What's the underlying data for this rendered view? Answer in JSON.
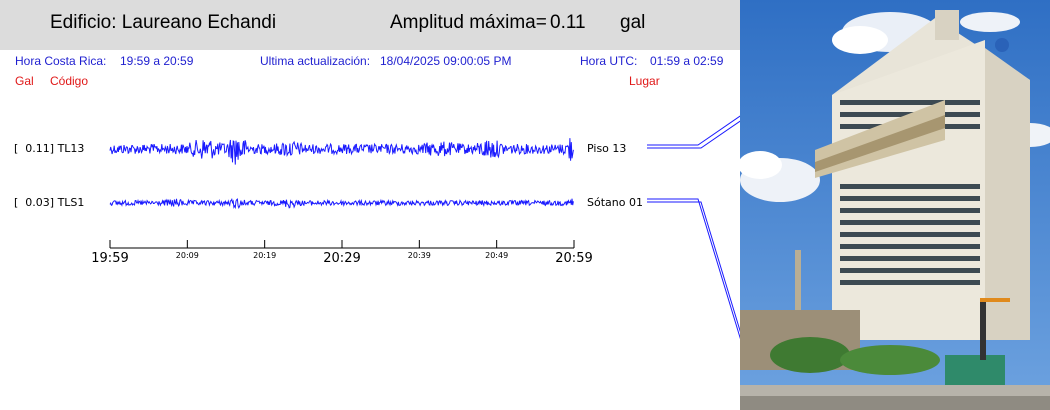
{
  "header": {
    "building": "Edificio: Laureano Echandi",
    "amplitude_label": "Amplitud máxima=",
    "amplitude_value": "0.11",
    "amplitude_unit": "gal"
  },
  "info": {
    "cr_time_label": "Hora Costa Rica:",
    "cr_time_range": "19:59 a 20:59",
    "update_label": "Ultima actualización:",
    "update_value": "18/04/2025 09:00:05 PM",
    "utc_label": "Hora UTC:",
    "utc_range": "01:59 a 02:59"
  },
  "columns": {
    "gal": "Gal",
    "code": "Código",
    "place": "Lugar"
  },
  "channels": [
    {
      "amplitude": "[  0.11] TL13",
      "place": "Piso 13"
    },
    {
      "amplitude": "[  0.03] TLS1",
      "place": "Sótano 01"
    }
  ],
  "time_axis": {
    "major": [
      "19:59",
      "20:29",
      "20:59"
    ],
    "minor": [
      "20:09",
      "20:19",
      "20:39",
      "20:49"
    ]
  },
  "colors": {
    "trace": "#1a1aff",
    "info_text": "#1f1fd0",
    "header_red": "#e01818",
    "top_bar": "#dcdcdc"
  }
}
